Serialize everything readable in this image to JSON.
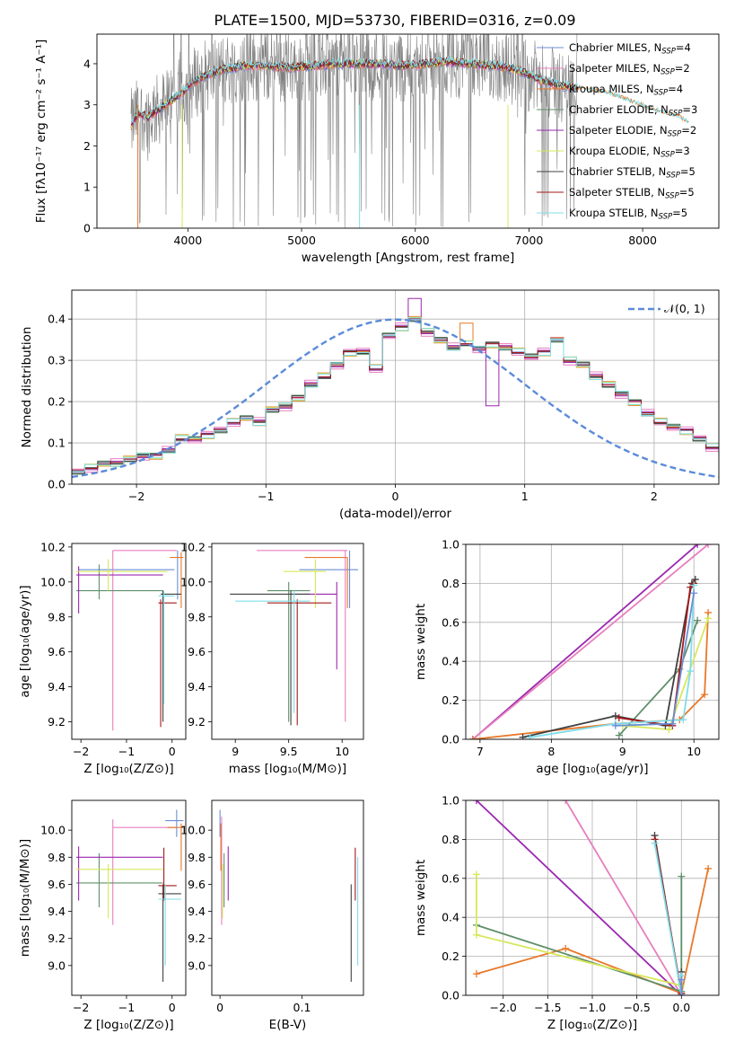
{
  "figure": {
    "title": "PLATE=1500, MJD=53730, FIBERID=0316, z=0.09"
  },
  "legend_entries": [
    {
      "label": "Chabrier MILES, N",
      "sub": "SSP",
      "suffix": "=4",
      "color": "#6a8fd6"
    },
    {
      "label": "Salpeter MILES, N",
      "sub": "SSP",
      "suffix": "=2",
      "color": "#e87fbd"
    },
    {
      "label": "Kroupa MILES, N",
      "sub": "SSP",
      "suffix": "=4",
      "color": "#e8782a"
    },
    {
      "label": "Chabrier ELODIE, N",
      "sub": "SSP",
      "suffix": "=3",
      "color": "#5f8f6a"
    },
    {
      "label": "Salpeter ELODIE, N",
      "sub": "SSP",
      "suffix": "=2",
      "color": "#9b27b0"
    },
    {
      "label": "Kroupa ELODIE, N",
      "sub": "SSP",
      "suffix": "=3",
      "color": "#d6e85a"
    },
    {
      "label": "Chabrier STELIB, N",
      "sub": "SSP",
      "suffix": "=5",
      "color": "#404040"
    },
    {
      "label": "Salpeter STELIB, N",
      "sub": "SSP",
      "suffix": "=5",
      "color": "#a31818"
    },
    {
      "label": "Kroupa STELIB, N",
      "sub": "SSP",
      "suffix": "=5",
      "color": "#7fdde8"
    }
  ],
  "chart_data": [
    {
      "id": "spectrum",
      "type": "line",
      "xlabel": "wavelength [Angstrom, rest frame]",
      "ylabel_html": "Flux [fλ10⁻¹⁷ erg cm⁻² s⁻¹ A⁻¹]",
      "xlim": [
        3200,
        8670
      ],
      "ylim": [
        0,
        4.72
      ],
      "xticks": [
        4000,
        5000,
        6000,
        7000,
        8000
      ],
      "yticks": [
        0,
        1,
        2,
        3,
        4
      ],
      "data_color": "#808080",
      "continuum": {
        "x": [
          3500,
          3560,
          3650,
          3750,
          3850,
          3950,
          4050,
          4150,
          4300,
          4500,
          4700,
          4900,
          5100,
          5300,
          5500,
          5700,
          5900,
          6100,
          6300,
          6500,
          6700,
          6900,
          7100,
          7300,
          7500,
          7700,
          7900,
          8100,
          8300,
          8400
        ],
        "y": [
          2.5,
          2.8,
          2.7,
          2.9,
          3.1,
          3.3,
          3.55,
          3.7,
          3.85,
          3.95,
          3.95,
          3.9,
          3.95,
          4.0,
          4.0,
          4.0,
          3.95,
          4.0,
          4.05,
          4.0,
          3.95,
          3.85,
          3.6,
          3.45,
          3.4,
          3.3,
          3.1,
          2.9,
          2.75,
          2.6
        ]
      }
    },
    {
      "id": "residuals",
      "type": "bar",
      "xlabel": "(data-model)/error",
      "ylabel": "Normed distribution",
      "xlim": [
        -2.5,
        2.5
      ],
      "ylim": [
        0,
        0.47
      ],
      "xticks": [
        -2,
        -1,
        0,
        1,
        2
      ],
      "yticks": [
        0.0,
        0.1,
        0.2,
        0.3,
        0.4
      ],
      "bin_width": 0.1,
      "bin_start": -2.5,
      "legend": "𝒩(0, 1)",
      "curve_color": "#5b8bd9",
      "series": [
        {
          "color": "#6a8fd6",
          "offset": 0.0
        },
        {
          "color": "#e87fbd",
          "offset": 0.012
        },
        {
          "color": "#e8782a",
          "offset": -0.01
        },
        {
          "color": "#5f8f6a",
          "offset": 0.006
        },
        {
          "color": "#9b27b0",
          "offset": -0.006
        },
        {
          "color": "#d6e85a",
          "offset": 0.009
        },
        {
          "color": "#404040",
          "offset": -0.004
        },
        {
          "color": "#a31818",
          "offset": 0.003
        },
        {
          "color": "#7fdde8",
          "offset": -0.008
        }
      ],
      "base_hist": [
        0.03,
        0.04,
        0.05,
        0.05,
        0.06,
        0.07,
        0.07,
        0.08,
        0.11,
        0.11,
        0.12,
        0.13,
        0.15,
        0.16,
        0.15,
        0.18,
        0.19,
        0.21,
        0.24,
        0.26,
        0.29,
        0.32,
        0.32,
        0.28,
        0.36,
        0.38,
        0.4,
        0.37,
        0.35,
        0.33,
        0.34,
        0.33,
        0.34,
        0.33,
        0.32,
        0.31,
        0.32,
        0.35,
        0.3,
        0.29,
        0.26,
        0.24,
        0.22,
        0.2,
        0.17,
        0.15,
        0.14,
        0.13,
        0.11,
        0.09,
        0.07,
        0.06,
        0.05,
        0.04
      ]
    },
    {
      "id": "age_vs_Z",
      "type": "scatter",
      "xlabel": "Z [log₁₀(Z/Z⊙)]",
      "ylabel": "age  [log₁₀(age/yr)]",
      "xlim": [
        -2.2,
        0.3
      ],
      "ylim": [
        9.1,
        10.22
      ],
      "xticks": [
        -2,
        -1,
        0
      ],
      "yticks": [
        9.2,
        9.4,
        9.6,
        9.8,
        10.0,
        10.2
      ]
    },
    {
      "id": "age_vs_mass",
      "type": "scatter",
      "xlabel": "mass [log₁₀(M/M⊙)]",
      "ylabel": "",
      "xlim": [
        8.78,
        10.2
      ],
      "ylim": [
        9.1,
        10.22
      ],
      "xticks": [
        9.0,
        9.5,
        10.0
      ],
      "yticks": [
        9.2,
        9.4,
        9.6,
        9.8,
        10.0,
        10.2
      ]
    },
    {
      "id": "massweight_vs_age",
      "type": "line",
      "xlabel": "age  [log₁₀(age/yr)]",
      "ylabel": "mass weight",
      "xlim": [
        6.8,
        10.35
      ],
      "ylim": [
        0,
        1.0
      ],
      "xticks": [
        7,
        8,
        9,
        10
      ],
      "yticks": [
        0.0,
        0.2,
        0.4,
        0.6,
        0.8,
        1.0
      ],
      "series": [
        {
          "color": "#9b27b0",
          "x": [
            6.9,
            10.05
          ],
          "y": [
            0.0,
            1.0
          ]
        },
        {
          "color": "#e87fbd",
          "x": [
            6.9,
            10.2
          ],
          "y": [
            0.0,
            1.0
          ]
        },
        {
          "color": "#e8782a",
          "x": [
            6.9,
            8.9,
            9.8,
            10.15,
            10.2
          ],
          "y": [
            0.0,
            0.08,
            0.1,
            0.23,
            0.65
          ]
        },
        {
          "color": "#5f8f6a",
          "x": [
            8.95,
            9.8,
            10.05
          ],
          "y": [
            0.02,
            0.36,
            0.61
          ]
        },
        {
          "color": "#d6e85a",
          "x": [
            9.0,
            9.65,
            10.2
          ],
          "y": [
            0.07,
            0.05,
            0.62
          ]
        },
        {
          "color": "#404040",
          "x": [
            7.6,
            8.9,
            9.6,
            9.97,
            10.02
          ],
          "y": [
            0.01,
            0.12,
            0.07,
            0.8,
            0.82
          ]
        },
        {
          "color": "#a31818",
          "x": [
            8.95,
            9.7,
            9.95,
            10.0
          ],
          "y": [
            0.11,
            0.07,
            0.78,
            0.8
          ]
        },
        {
          "color": "#7fdde8",
          "x": [
            7.7,
            8.9,
            9.85,
            9.95,
            10.0
          ],
          "y": [
            0.01,
            0.08,
            0.1,
            0.35,
            0.79
          ]
        },
        {
          "color": "#6a8fd6",
          "x": [
            8.9,
            9.7,
            10.0
          ],
          "y": [
            0.07,
            0.08,
            0.75
          ]
        }
      ]
    },
    {
      "id": "mass_vs_Z",
      "type": "scatter",
      "xlabel": "Z [log₁₀(Z/Z⊙)]",
      "ylabel": "mass [log₁₀(M/M⊙)]",
      "xlim": [
        -2.2,
        0.3
      ],
      "ylim": [
        8.78,
        10.22
      ],
      "xticks": [
        -2,
        -1,
        0
      ],
      "yticks": [
        9.0,
        9.2,
        9.4,
        9.6,
        9.8,
        10.0
      ]
    },
    {
      "id": "mass_vs_EBV",
      "type": "scatter",
      "xlabel": "E(B-V)",
      "ylabel": "",
      "xlim": [
        -0.01,
        0.175
      ],
      "ylim": [
        8.78,
        10.22
      ],
      "xticks": [
        0.0,
        0.1
      ],
      "yticks": [
        9.0,
        9.2,
        9.4,
        9.6,
        9.8,
        10.0
      ]
    },
    {
      "id": "massweight_vs_Z",
      "type": "line",
      "xlabel": "Z [log₁₀(Z/Z⊙)]",
      "ylabel": "mass weight",
      "xlim": [
        -2.42,
        0.42
      ],
      "ylim": [
        0,
        1.0
      ],
      "xticks": [
        -2.0,
        -1.5,
        -1.0,
        -0.5,
        0.0
      ],
      "yticks": [
        0.0,
        0.2,
        0.4,
        0.6,
        0.8,
        1.0
      ],
      "series": [
        {
          "color": "#9b27b0",
          "x": [
            -2.3,
            0.0
          ],
          "y": [
            1.0,
            0.0
          ]
        },
        {
          "color": "#e87fbd",
          "x": [
            -1.3,
            0.0
          ],
          "y": [
            1.0,
            0.0
          ]
        },
        {
          "color": "#e8782a",
          "x": [
            -2.3,
            -1.3,
            0.0,
            0.3
          ],
          "y": [
            0.11,
            0.24,
            0.01,
            0.65
          ]
        },
        {
          "color": "#5f8f6a",
          "x": [
            -2.3,
            0.0,
            0.0
          ],
          "y": [
            0.36,
            0.02,
            0.61
          ]
        },
        {
          "color": "#d6e85a",
          "x": [
            -2.3,
            -2.3,
            0.0
          ],
          "y": [
            0.62,
            0.31,
            0.05
          ]
        },
        {
          "color": "#404040",
          "x": [
            -0.3,
            0.0,
            0.0
          ],
          "y": [
            0.82,
            0.0,
            0.12
          ]
        },
        {
          "color": "#a31818",
          "x": [
            -0.3,
            0.0
          ],
          "y": [
            0.8,
            0.01
          ]
        },
        {
          "color": "#7fdde8",
          "x": [
            -0.3,
            0.0,
            0.0
          ],
          "y": [
            0.78,
            0.0,
            0.1
          ]
        },
        {
          "color": "#6a8fd6",
          "x": [
            0.0,
            0.0
          ],
          "y": [
            0.0,
            0.08
          ]
        }
      ]
    }
  ]
}
